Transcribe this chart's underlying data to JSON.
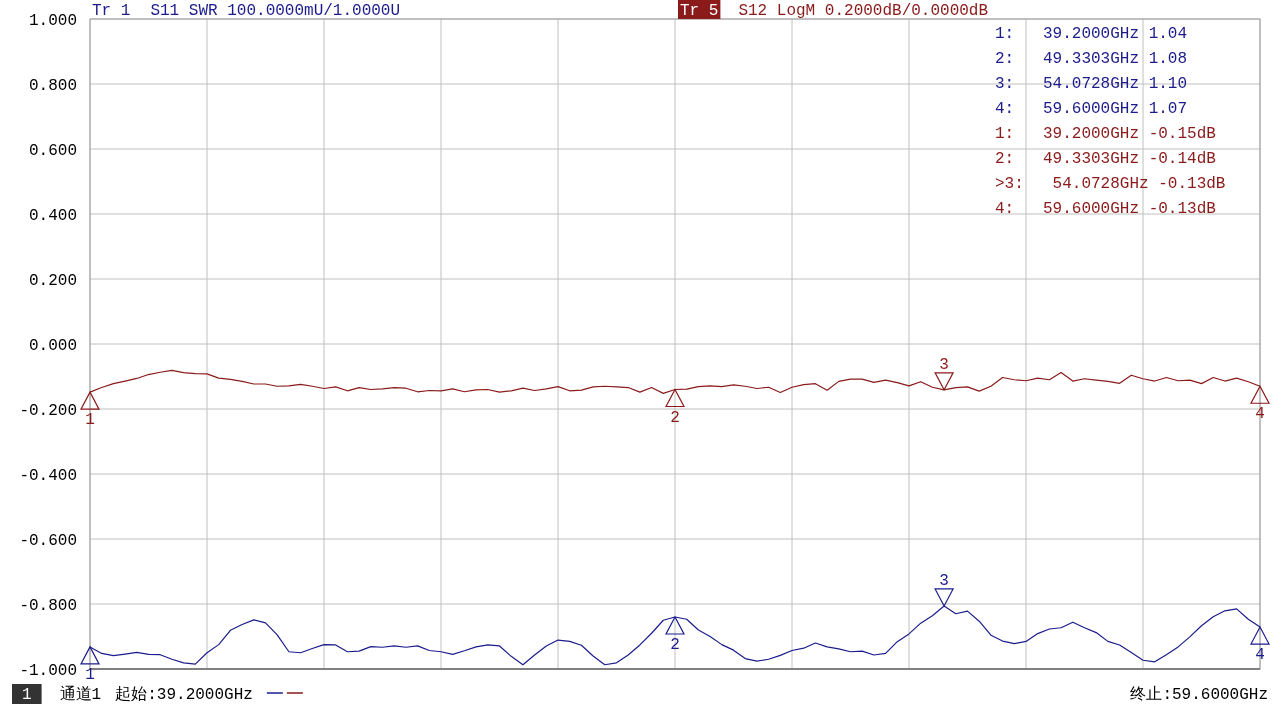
{
  "chart_data": {
    "type": "line",
    "categories": [
      null,
      null,
      null,
      null,
      null,
      null,
      null,
      null,
      null,
      null,
      null,
      null,
      null,
      null,
      null,
      null,
      null,
      null,
      null,
      null,
      null,
      null,
      null,
      null,
      null,
      null,
      null,
      null,
      null,
      null,
      null,
      null,
      null,
      null,
      null,
      null,
      null,
      null,
      null,
      null,
      null,
      null,
      null,
      null,
      null,
      null,
      null,
      null,
      null,
      null,
      null,
      null,
      null,
      null,
      null,
      null,
      null,
      null,
      null,
      null,
      null,
      null,
      null,
      null,
      null,
      null,
      null,
      null,
      null,
      null,
      null,
      null,
      null,
      null,
      null,
      null,
      null,
      null,
      null,
      null,
      null,
      null,
      null,
      null,
      null,
      null,
      null,
      null,
      null,
      null,
      null,
      null,
      null,
      null,
      null,
      null,
      null,
      null,
      null,
      null,
      null
    ],
    "ylim": [
      -1,
      1
    ],
    "yticks": [
      {
        "value": -1,
        "label": "-1.000"
      },
      {
        "value": -0.8,
        "label": "-0.800"
      },
      {
        "value": -0.6,
        "label": "-0.600"
      },
      {
        "value": -0.4,
        "label": "-0.400"
      },
      {
        "value": -0.2,
        "label": "-0.200"
      },
      {
        "value": 0,
        "label": "0.000"
      },
      {
        "value": 0.2,
        "label": "0.200"
      },
      {
        "value": 0.4,
        "label": "0.400"
      },
      {
        "value": 0.6,
        "label": "0.600"
      },
      {
        "value": 0.8,
        "label": "0.800"
      },
      {
        "value": 1,
        "label": "1.000"
      }
    ],
    "tick_labels": "y",
    "grid": true,
    "legend": "top",
    "series": [
      {
        "name": "S11 SWR 100.0000mU/1.0000U",
        "color": "#1c1c8c",
        "values": [
          -0.932,
          -0.952,
          -0.959,
          -0.954,
          -0.949,
          -0.955,
          -0.956,
          -0.97,
          -0.981,
          -0.985,
          -0.95,
          -0.925,
          -0.881,
          -0.863,
          -0.849,
          -0.858,
          -0.895,
          -0.947,
          -0.95,
          -0.937,
          -0.925,
          -0.926,
          -0.947,
          -0.945,
          -0.931,
          -0.933,
          -0.929,
          -0.933,
          -0.929,
          -0.943,
          -0.947,
          -0.955,
          -0.944,
          -0.932,
          -0.926,
          -0.929,
          -0.961,
          -0.987,
          -0.957,
          -0.929,
          -0.911,
          -0.915,
          -0.927,
          -0.96,
          -0.987,
          -0.981,
          -0.957,
          -0.926,
          -0.89,
          -0.85,
          -0.84,
          -0.847,
          -0.88,
          -0.9,
          -0.925,
          -0.942,
          -0.968,
          -0.976,
          -0.97,
          -0.958,
          -0.943,
          -0.936,
          -0.92,
          -0.932,
          -0.938,
          -0.947,
          -0.945,
          -0.957,
          -0.952,
          -0.916,
          -0.892,
          -0.859,
          -0.836,
          -0.806,
          -0.83,
          -0.822,
          -0.853,
          -0.896,
          -0.914,
          -0.922,
          -0.915,
          -0.891,
          -0.877,
          -0.873,
          -0.856,
          -0.873,
          -0.888,
          -0.915,
          -0.926,
          -0.949,
          -0.973,
          -0.978,
          -0.956,
          -0.932,
          -0.901,
          -0.867,
          -0.839,
          -0.821,
          -0.815,
          -0.847,
          -0.871
        ]
      },
      {
        "name": "S12 LogM 0.2000dB/0.0000dB",
        "color": "#8b1a1a",
        "values": [
          -0.148,
          -0.134,
          -0.122,
          -0.114,
          -0.106,
          -0.094,
          -0.087,
          -0.081,
          -0.088,
          -0.091,
          -0.092,
          -0.105,
          -0.109,
          -0.115,
          -0.123,
          -0.123,
          -0.13,
          -0.129,
          -0.124,
          -0.13,
          -0.137,
          -0.132,
          -0.144,
          -0.134,
          -0.14,
          -0.138,
          -0.134,
          -0.136,
          -0.147,
          -0.143,
          -0.144,
          -0.138,
          -0.147,
          -0.141,
          -0.14,
          -0.148,
          -0.144,
          -0.136,
          -0.143,
          -0.138,
          -0.131,
          -0.144,
          -0.142,
          -0.132,
          -0.13,
          -0.132,
          -0.134,
          -0.148,
          -0.134,
          -0.152,
          -0.14,
          -0.139,
          -0.131,
          -0.129,
          -0.131,
          -0.126,
          -0.13,
          -0.137,
          -0.133,
          -0.149,
          -0.133,
          -0.125,
          -0.122,
          -0.142,
          -0.115,
          -0.108,
          -0.108,
          -0.118,
          -0.111,
          -0.119,
          -0.129,
          -0.116,
          -0.133,
          -0.141,
          -0.134,
          -0.132,
          -0.145,
          -0.13,
          -0.103,
          -0.11,
          -0.113,
          -0.105,
          -0.11,
          -0.088,
          -0.114,
          -0.107,
          -0.111,
          -0.115,
          -0.121,
          -0.096,
          -0.107,
          -0.114,
          -0.103,
          -0.113,
          -0.111,
          -0.122,
          -0.103,
          -0.114,
          -0.105,
          -0.116,
          -0.13
        ]
      }
    ],
    "annotations": [
      "Tr 1",
      "Tr 5",
      "1:   39.2000GHz 1.04",
      "2:   49.3303GHz 1.08",
      "3:   54.0728GHz 1.10",
      "4:   59.6000GHz 1.07",
      "1:   39.2000GHz -0.15dB",
      "2:   49.3303GHz -0.14dB",
      ">3:   54.0728GHz -0.13dB",
      "4:   59.6000GHz -0.13dB",
      {
        "text": "1",
        "y": -0.932
      },
      {
        "text": "2",
        "y": -0.84
      },
      {
        "text": "3",
        "y": -0.806
      },
      {
        "text": "4",
        "y": -0.871
      },
      {
        "text": "1",
        "y": -0.148
      },
      {
        "text": "2",
        "y": -0.14
      },
      {
        "text": "3",
        "y": -0.141
      },
      {
        "text": "4",
        "y": -0.13
      },
      "1",
      "通道1",
      "起始:39.2000GHz",
      "终止:59.6000GHz"
    ]
  }
}
